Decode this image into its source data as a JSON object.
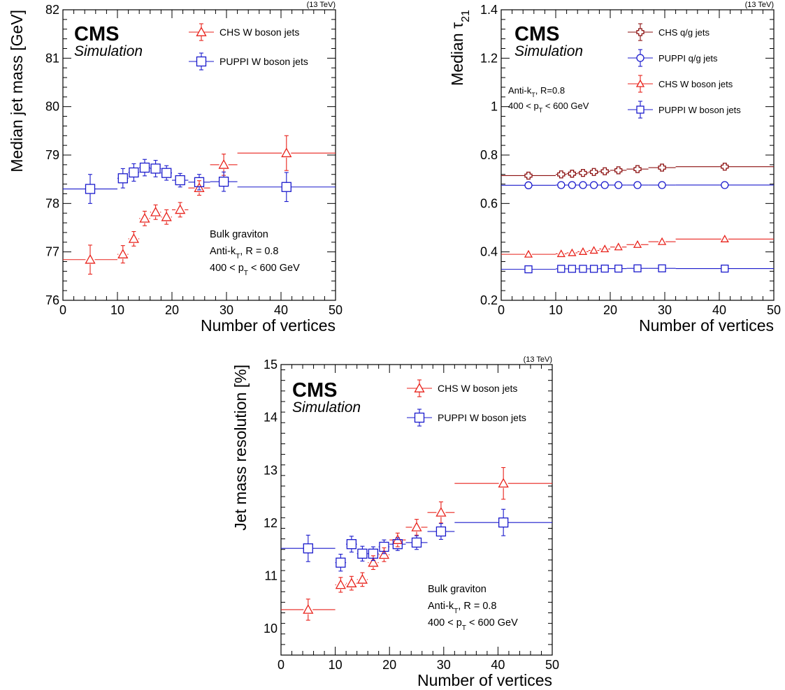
{
  "colors": {
    "chs": "#e8221b",
    "puppi": "#1a1acc",
    "chs_qg": "#8b0f0f",
    "puppi_qg": "#1a1acc"
  },
  "chart_data": [
    {
      "type": "scatter",
      "energy_label": "(13 TeV)",
      "cms_label": "CMS",
      "sim_label": "Simulation",
      "xlabel": "Number of vertices",
      "ylabel": "Median jet mass [GeV]",
      "xlim": [
        0,
        50
      ],
      "ylim": [
        76,
        82
      ],
      "xticks": [
        "0",
        "10",
        "20",
        "30",
        "40",
        "50"
      ],
      "yticks": [
        "76",
        "77",
        "78",
        "79",
        "80",
        "81",
        "82"
      ],
      "annotation": [
        "Bulk graviton",
        "Anti-kT, R = 0.8",
        "400 < pT < 600 GeV"
      ],
      "series": [
        {
          "name": "CHS W boson jets",
          "marker": "triangle",
          "color": "#e8221b",
          "points": [
            {
              "x": 5,
              "xlo": 0,
              "xhi": 10,
              "y": 76.84,
              "err": 0.3
            },
            {
              "x": 11,
              "xlo": 10,
              "xhi": 12,
              "y": 76.95,
              "err": 0.18
            },
            {
              "x": 13,
              "xlo": 12,
              "xhi": 14,
              "y": 77.27,
              "err": 0.15
            },
            {
              "x": 15,
              "xlo": 14,
              "xhi": 16,
              "y": 77.69,
              "err": 0.15
            },
            {
              "x": 17,
              "xlo": 16,
              "xhi": 18,
              "y": 77.82,
              "err": 0.15
            },
            {
              "x": 19,
              "xlo": 18,
              "xhi": 20,
              "y": 77.72,
              "err": 0.15
            },
            {
              "x": 21.5,
              "xlo": 20,
              "xhi": 23,
              "y": 77.87,
              "err": 0.15
            },
            {
              "x": 25,
              "xlo": 23,
              "xhi": 27,
              "y": 78.32,
              "err": 0.15
            },
            {
              "x": 29.5,
              "xlo": 27,
              "xhi": 32,
              "y": 78.8,
              "err": 0.22
            },
            {
              "x": 41,
              "xlo": 32,
              "xhi": 50,
              "y": 79.04,
              "err": 0.36
            }
          ]
        },
        {
          "name": "PUPPI W boson jets",
          "marker": "square",
          "color": "#1a1acc",
          "points": [
            {
              "x": 5,
              "xlo": 0,
              "xhi": 10,
              "y": 78.3,
              "err": 0.3
            },
            {
              "x": 11,
              "xlo": 10,
              "xhi": 12,
              "y": 78.52,
              "err": 0.2
            },
            {
              "x": 13,
              "xlo": 12,
              "xhi": 14,
              "y": 78.64,
              "err": 0.18
            },
            {
              "x": 15,
              "xlo": 14,
              "xhi": 16,
              "y": 78.74,
              "err": 0.17
            },
            {
              "x": 17,
              "xlo": 16,
              "xhi": 18,
              "y": 78.72,
              "err": 0.17
            },
            {
              "x": 19,
              "xlo": 18,
              "xhi": 20,
              "y": 78.63,
              "err": 0.15
            },
            {
              "x": 21.5,
              "xlo": 20,
              "xhi": 23,
              "y": 78.48,
              "err": 0.14
            },
            {
              "x": 25,
              "xlo": 23,
              "xhi": 27,
              "y": 78.44,
              "err": 0.16
            },
            {
              "x": 29.5,
              "xlo": 27,
              "xhi": 32,
              "y": 78.45,
              "err": 0.2
            },
            {
              "x": 41,
              "xlo": 32,
              "xhi": 50,
              "y": 78.34,
              "err": 0.3
            }
          ]
        }
      ]
    },
    {
      "type": "scatter",
      "energy_label": "(13 TeV)",
      "cms_label": "CMS",
      "sim_label": "Simulation",
      "xlabel": "Number of vertices",
      "ylabel": "Median τ21",
      "xlim": [
        0,
        50
      ],
      "ylim": [
        0.2,
        1.4
      ],
      "xticks": [
        "0",
        "10",
        "20",
        "30",
        "40",
        "50"
      ],
      "yticks": [
        "0.2",
        "0.4",
        "0.6",
        "0.8",
        "1",
        "1.2",
        "1.4"
      ],
      "annotation": [
        "Anti-kT, R=0.8",
        "400 < pT < 600 GeV"
      ],
      "series": [
        {
          "name": "CHS q/g jets",
          "marker": "cross",
          "color": "#8b0f0f",
          "points": [
            {
              "x": 5,
              "xlo": 0,
              "xhi": 10,
              "y": 0.715,
              "err": 0.008
            },
            {
              "x": 11,
              "xlo": 10,
              "xhi": 12,
              "y": 0.72,
              "err": 0.006
            },
            {
              "x": 13,
              "xlo": 12,
              "xhi": 14,
              "y": 0.723,
              "err": 0.006
            },
            {
              "x": 15,
              "xlo": 14,
              "xhi": 16,
              "y": 0.726,
              "err": 0.006
            },
            {
              "x": 17,
              "xlo": 16,
              "xhi": 18,
              "y": 0.73,
              "err": 0.006
            },
            {
              "x": 19,
              "xlo": 18,
              "xhi": 20,
              "y": 0.733,
              "err": 0.006
            },
            {
              "x": 21.5,
              "xlo": 20,
              "xhi": 23,
              "y": 0.737,
              "err": 0.006
            },
            {
              "x": 25,
              "xlo": 23,
              "xhi": 27,
              "y": 0.742,
              "err": 0.006
            },
            {
              "x": 29.5,
              "xlo": 27,
              "xhi": 32,
              "y": 0.748,
              "err": 0.006
            },
            {
              "x": 41,
              "xlo": 32,
              "xhi": 50,
              "y": 0.752,
              "err": 0.008
            }
          ]
        },
        {
          "name": "PUPPI q/g jets",
          "marker": "circle",
          "color": "#1a1acc",
          "points": [
            {
              "x": 5,
              "xlo": 0,
              "xhi": 10,
              "y": 0.675,
              "err": 0.006
            },
            {
              "x": 11,
              "xlo": 10,
              "xhi": 12,
              "y": 0.676,
              "err": 0.005
            },
            {
              "x": 13,
              "xlo": 12,
              "xhi": 14,
              "y": 0.676,
              "err": 0.005
            },
            {
              "x": 15,
              "xlo": 14,
              "xhi": 16,
              "y": 0.676,
              "err": 0.005
            },
            {
              "x": 17,
              "xlo": 16,
              "xhi": 18,
              "y": 0.676,
              "err": 0.005
            },
            {
              "x": 19,
              "xlo": 18,
              "xhi": 20,
              "y": 0.676,
              "err": 0.005
            },
            {
              "x": 21.5,
              "xlo": 20,
              "xhi": 23,
              "y": 0.676,
              "err": 0.005
            },
            {
              "x": 25,
              "xlo": 23,
              "xhi": 27,
              "y": 0.676,
              "err": 0.005
            },
            {
              "x": 29.5,
              "xlo": 27,
              "xhi": 32,
              "y": 0.676,
              "err": 0.005
            },
            {
              "x": 41,
              "xlo": 32,
              "xhi": 50,
              "y": 0.676,
              "err": 0.006
            }
          ]
        },
        {
          "name": "CHS W boson jets",
          "marker": "triangle",
          "color": "#e8221b",
          "points": [
            {
              "x": 5,
              "xlo": 0,
              "xhi": 10,
              "y": 0.39,
              "err": 0.006
            },
            {
              "x": 11,
              "xlo": 10,
              "xhi": 12,
              "y": 0.392,
              "err": 0.005
            },
            {
              "x": 13,
              "xlo": 12,
              "xhi": 14,
              "y": 0.396,
              "err": 0.005
            },
            {
              "x": 15,
              "xlo": 14,
              "xhi": 16,
              "y": 0.401,
              "err": 0.005
            },
            {
              "x": 17,
              "xlo": 16,
              "xhi": 18,
              "y": 0.406,
              "err": 0.005
            },
            {
              "x": 19,
              "xlo": 18,
              "xhi": 20,
              "y": 0.412,
              "err": 0.005
            },
            {
              "x": 21.5,
              "xlo": 20,
              "xhi": 23,
              "y": 0.42,
              "err": 0.005
            },
            {
              "x": 25,
              "xlo": 23,
              "xhi": 27,
              "y": 0.43,
              "err": 0.005
            },
            {
              "x": 29.5,
              "xlo": 27,
              "xhi": 32,
              "y": 0.442,
              "err": 0.005
            },
            {
              "x": 41,
              "xlo": 32,
              "xhi": 50,
              "y": 0.453,
              "err": 0.006
            }
          ]
        },
        {
          "name": "PUPPI W boson jets",
          "marker": "square",
          "color": "#1a1acc",
          "points": [
            {
              "x": 5,
              "xlo": 0,
              "xhi": 10,
              "y": 0.328,
              "err": 0.005
            },
            {
              "x": 11,
              "xlo": 10,
              "xhi": 12,
              "y": 0.33,
              "err": 0.004
            },
            {
              "x": 13,
              "xlo": 12,
              "xhi": 14,
              "y": 0.33,
              "err": 0.004
            },
            {
              "x": 15,
              "xlo": 14,
              "xhi": 16,
              "y": 0.33,
              "err": 0.004
            },
            {
              "x": 17,
              "xlo": 16,
              "xhi": 18,
              "y": 0.33,
              "err": 0.004
            },
            {
              "x": 19,
              "xlo": 18,
              "xhi": 20,
              "y": 0.331,
              "err": 0.004
            },
            {
              "x": 21.5,
              "xlo": 20,
              "xhi": 23,
              "y": 0.331,
              "err": 0.004
            },
            {
              "x": 25,
              "xlo": 23,
              "xhi": 27,
              "y": 0.332,
              "err": 0.004
            },
            {
              "x": 29.5,
              "xlo": 27,
              "xhi": 32,
              "y": 0.332,
              "err": 0.004
            },
            {
              "x": 41,
              "xlo": 32,
              "xhi": 50,
              "y": 0.331,
              "err": 0.005
            }
          ]
        }
      ]
    },
    {
      "type": "scatter",
      "energy_label": "(13 TeV)",
      "cms_label": "CMS",
      "sim_label": "Simulation",
      "xlabel": "Number of vertices",
      "ylabel": "Jet mass resolution [%]",
      "xlim": [
        0,
        50
      ],
      "ylim": [
        9.5,
        15
      ],
      "xticks": [
        "0",
        "10",
        "20",
        "30",
        "40",
        "50"
      ],
      "yticks": [
        "10",
        "11",
        "12",
        "13",
        "14",
        "15"
      ],
      "annotation": [
        "Bulk graviton",
        "Anti-kT, R = 0.8",
        "400 < pT < 600 GeV"
      ],
      "series": [
        {
          "name": "CHS W boson jets",
          "marker": "triangle",
          "color": "#e8221b",
          "points": [
            {
              "x": 5,
              "xlo": 0,
              "xhi": 10,
              "y": 10.36,
              "err": 0.2
            },
            {
              "x": 11,
              "xlo": 10,
              "xhi": 12,
              "y": 10.83,
              "err": 0.14
            },
            {
              "x": 13,
              "xlo": 12,
              "xhi": 14,
              "y": 10.86,
              "err": 0.13
            },
            {
              "x": 15,
              "xlo": 14,
              "xhi": 16,
              "y": 10.93,
              "err": 0.13
            },
            {
              "x": 17,
              "xlo": 16,
              "xhi": 18,
              "y": 11.25,
              "err": 0.13
            },
            {
              "x": 19,
              "xlo": 18,
              "xhi": 20,
              "y": 11.4,
              "err": 0.13
            },
            {
              "x": 21.5,
              "xlo": 20,
              "xhi": 23,
              "y": 11.68,
              "err": 0.13
            },
            {
              "x": 25,
              "xlo": 23,
              "xhi": 27,
              "y": 11.92,
              "err": 0.15
            },
            {
              "x": 29.5,
              "xlo": 27,
              "xhi": 32,
              "y": 12.2,
              "err": 0.2
            },
            {
              "x": 41,
              "xlo": 32,
              "xhi": 50,
              "y": 12.75,
              "err": 0.3
            }
          ]
        },
        {
          "name": "PUPPI W boson jets",
          "marker": "square",
          "color": "#1a1acc",
          "points": [
            {
              "x": 5,
              "xlo": 0,
              "xhi": 10,
              "y": 11.52,
              "err": 0.25
            },
            {
              "x": 11,
              "xlo": 10,
              "xhi": 12,
              "y": 11.25,
              "err": 0.16
            },
            {
              "x": 13,
              "xlo": 12,
              "xhi": 14,
              "y": 11.6,
              "err": 0.15
            },
            {
              "x": 15,
              "xlo": 14,
              "xhi": 16,
              "y": 11.42,
              "err": 0.14
            },
            {
              "x": 17,
              "xlo": 16,
              "xhi": 18,
              "y": 11.42,
              "err": 0.13
            },
            {
              "x": 19,
              "xlo": 18,
              "xhi": 20,
              "y": 11.55,
              "err": 0.13
            },
            {
              "x": 21.5,
              "xlo": 20,
              "xhi": 23,
              "y": 11.6,
              "err": 0.12
            },
            {
              "x": 25,
              "xlo": 23,
              "xhi": 27,
              "y": 11.63,
              "err": 0.13
            },
            {
              "x": 29.5,
              "xlo": 27,
              "xhi": 32,
              "y": 11.84,
              "err": 0.15
            },
            {
              "x": 41,
              "xlo": 32,
              "xhi": 50,
              "y": 12.01,
              "err": 0.25
            }
          ]
        }
      ]
    }
  ]
}
